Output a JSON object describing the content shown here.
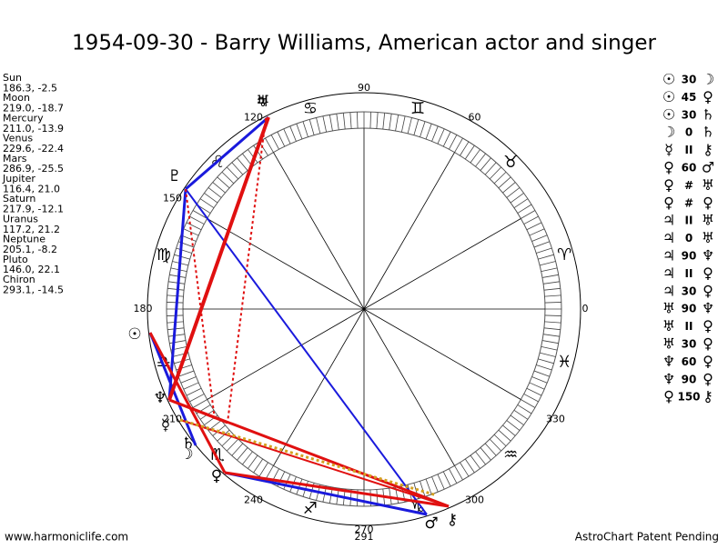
{
  "header": {
    "title": "1954-09-30 - Barry Williams, American actor and singer"
  },
  "planets": [
    {
      "name": "Sun",
      "glyph": "☉",
      "coords": "186.3, -2.5"
    },
    {
      "name": "Moon",
      "glyph": "☽",
      "coords": "219.0, -18.7"
    },
    {
      "name": "Mercury",
      "glyph": "☿",
      "coords": "211.0, -13.9"
    },
    {
      "name": "Venus",
      "glyph": "♀",
      "coords": "229.6, -22.4"
    },
    {
      "name": "Mars",
      "glyph": "♂",
      "coords": "286.9, -25.5"
    },
    {
      "name": "Jupiter",
      "glyph": "♃",
      "coords": "116.4, 21.0"
    },
    {
      "name": "Saturn",
      "glyph": "♄",
      "coords": "217.9, -12.1"
    },
    {
      "name": "Uranus",
      "glyph": "♅",
      "coords": "117.2, 21.2"
    },
    {
      "name": "Neptune",
      "glyph": "♆",
      "coords": "205.1, -8.2"
    },
    {
      "name": "Pluto",
      "glyph": "♇",
      "coords": "146.0, 22.1"
    },
    {
      "name": "Chiron",
      "glyph": "⚷",
      "coords": "293.1, -14.5"
    }
  ],
  "aspects": [
    [
      "☉",
      "30",
      "☽"
    ],
    [
      "☉",
      "45",
      "♀"
    ],
    [
      "☉",
      "30",
      "♄"
    ],
    [
      "☽",
      "0",
      "♄"
    ],
    [
      "☿",
      "II",
      "⚷"
    ],
    [
      "♀",
      "60",
      "♂"
    ],
    [
      "♀",
      "#",
      "♅"
    ],
    [
      "♀",
      "#",
      "♀"
    ],
    [
      "♃",
      "II",
      "♅"
    ],
    [
      "♃",
      "0",
      "♅"
    ],
    [
      "♃",
      "90",
      "♆"
    ],
    [
      "♃",
      "II",
      "♀"
    ],
    [
      "♃",
      "30",
      "♀"
    ],
    [
      "♅",
      "90",
      "♆"
    ],
    [
      "♅",
      "II",
      "♀"
    ],
    [
      "♅",
      "30",
      "♀"
    ],
    [
      "♆",
      "60",
      "♀"
    ],
    [
      "♆",
      "90",
      "♀"
    ],
    [
      "♀",
      "150",
      "⚷"
    ]
  ],
  "wheel": {
    "degree_labels": [
      0,
      60,
      90,
      120,
      150,
      180,
      210,
      240,
      270,
      300,
      330
    ],
    "zodiac": [
      "♈",
      "♉",
      "♊",
      "♋",
      "♌",
      "♍",
      "♎",
      "♏",
      "♐",
      "♑",
      "♒",
      "♓"
    ],
    "ascendant": "291"
  },
  "footer": {
    "site": "www.harmoniclife.com",
    "note": "AstroChart Patent Pending"
  }
}
